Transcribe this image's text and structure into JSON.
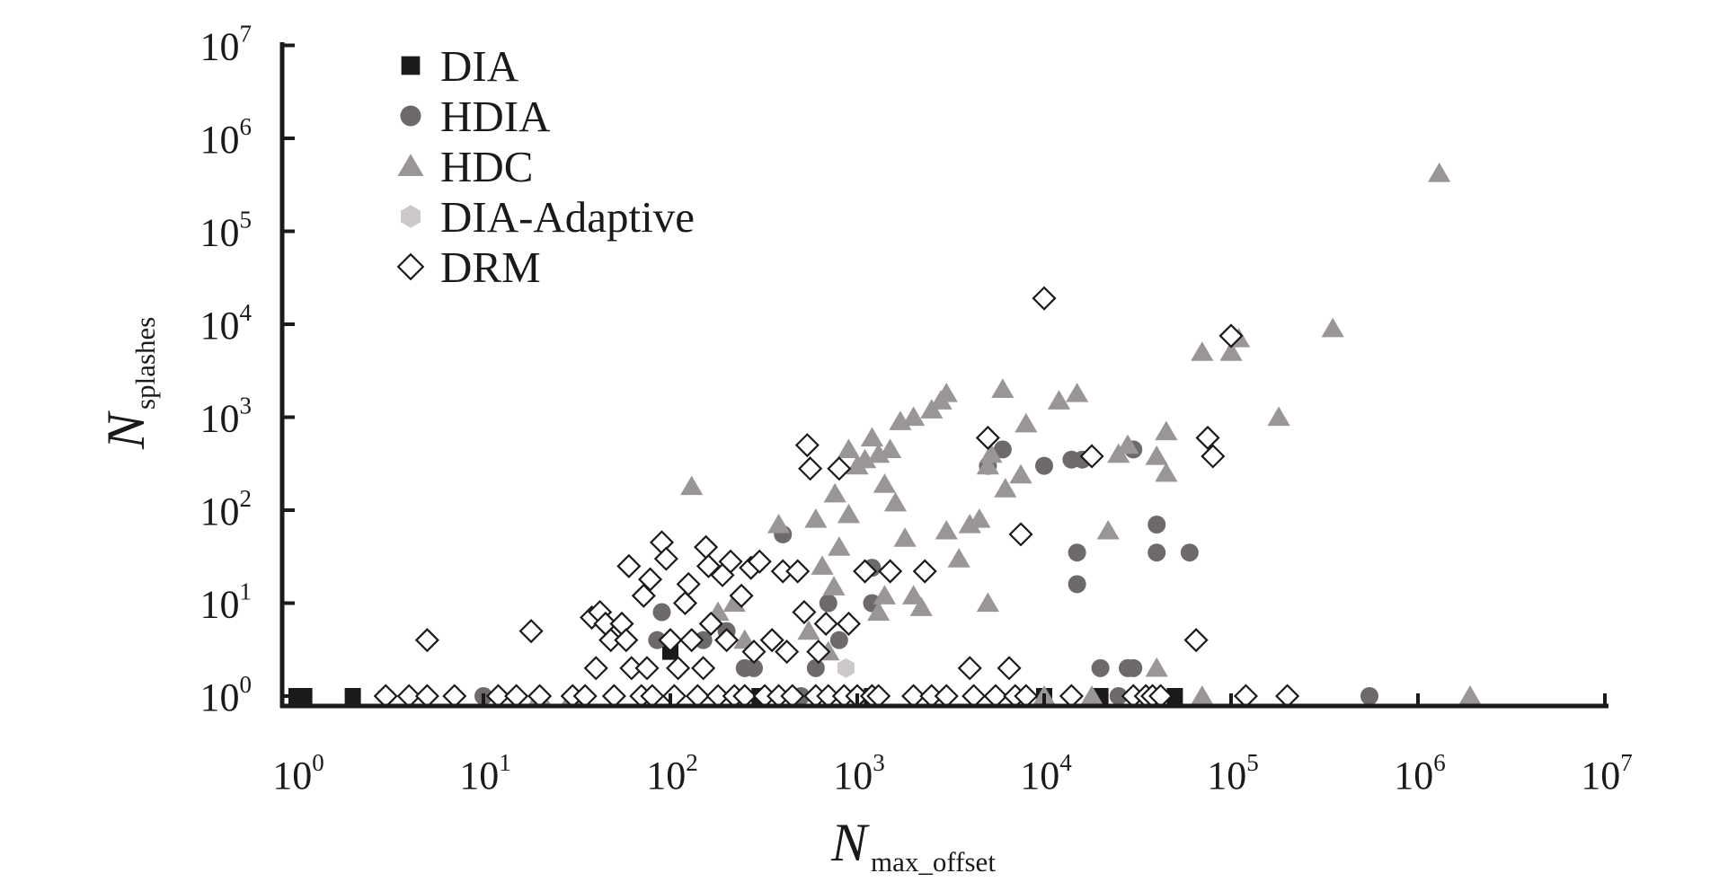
{
  "chart_data": {
    "type": "scatter",
    "x_scale": "log",
    "y_scale": "log",
    "xlim": [
      1,
      10000000
    ],
    "ylim": [
      1,
      10000000
    ],
    "x_ticks": [
      {
        "base": "10",
        "exp": "0"
      },
      {
        "base": "10",
        "exp": "1"
      },
      {
        "base": "10",
        "exp": "2"
      },
      {
        "base": "10",
        "exp": "3"
      },
      {
        "base": "10",
        "exp": "4"
      },
      {
        "base": "10",
        "exp": "5"
      },
      {
        "base": "10",
        "exp": "6"
      },
      {
        "base": "10",
        "exp": "7"
      }
    ],
    "y_ticks": [
      {
        "base": "10",
        "exp": "0"
      },
      {
        "base": "10",
        "exp": "1"
      },
      {
        "base": "10",
        "exp": "2"
      },
      {
        "base": "10",
        "exp": "3"
      },
      {
        "base": "10",
        "exp": "4"
      },
      {
        "base": "10",
        "exp": "5"
      },
      {
        "base": "10",
        "exp": "6"
      },
      {
        "base": "10",
        "exp": "7"
      }
    ],
    "xlabel": {
      "main": "N",
      "sub": "max_offset"
    },
    "ylabel": {
      "main": "N",
      "sub": "splashes"
    },
    "legend_position": "top-left",
    "series": [
      {
        "name": "DIA",
        "marker": "square",
        "color": "#1a1a1a",
        "points": [
          [
            1,
            1
          ],
          [
            1.1,
            1
          ],
          [
            2,
            1
          ],
          [
            100,
            3
          ],
          [
            300,
            1
          ],
          [
            1200,
            1
          ],
          [
            10000,
            1
          ],
          [
            20000,
            1
          ],
          [
            50000,
            1
          ]
        ]
      },
      {
        "name": "HDIA",
        "marker": "circle",
        "color": "#6e6a6b",
        "points": [
          [
            10,
            1
          ],
          [
            85,
            4
          ],
          [
            90,
            8
          ],
          [
            120,
            10
          ],
          [
            150,
            4
          ],
          [
            200,
            5
          ],
          [
            250,
            2
          ],
          [
            280,
            2
          ],
          [
            400,
            55
          ],
          [
            500,
            1
          ],
          [
            600,
            2
          ],
          [
            700,
            10
          ],
          [
            800,
            4
          ],
          [
            1000,
            1
          ],
          [
            1200,
            10
          ],
          [
            1200,
            24
          ],
          [
            5000,
            300
          ],
          [
            6000,
            450
          ],
          [
            10000,
            300
          ],
          [
            14000,
            350
          ],
          [
            15000,
            35
          ],
          [
            15000,
            16
          ],
          [
            16000,
            350
          ],
          [
            20000,
            2
          ],
          [
            25000,
            1
          ],
          [
            28000,
            2
          ],
          [
            30000,
            2
          ],
          [
            30000,
            450
          ],
          [
            40000,
            35
          ],
          [
            40000,
            70
          ],
          [
            60000,
            35
          ],
          [
            550000,
            1
          ]
        ]
      },
      {
        "name": "HDC",
        "marker": "triangle",
        "color": "#9a9596",
        "points": [
          [
            20,
            1
          ],
          [
            30,
            1
          ],
          [
            130,
            180
          ],
          [
            180,
            8
          ],
          [
            220,
            10
          ],
          [
            250,
            4
          ],
          [
            380,
            70
          ],
          [
            550,
            5
          ],
          [
            600,
            80
          ],
          [
            650,
            25
          ],
          [
            700,
            3
          ],
          [
            750,
            15
          ],
          [
            760,
            150
          ],
          [
            800,
            40
          ],
          [
            900,
            90
          ],
          [
            900,
            450
          ],
          [
            1000,
            300
          ],
          [
            1100,
            350
          ],
          [
            1200,
            600
          ],
          [
            1300,
            400
          ],
          [
            1300,
            8
          ],
          [
            1400,
            12
          ],
          [
            1400,
            190
          ],
          [
            1500,
            450
          ],
          [
            1600,
            120
          ],
          [
            1700,
            900
          ],
          [
            1800,
            50
          ],
          [
            2000,
            1000
          ],
          [
            2000,
            12
          ],
          [
            2200,
            9
          ],
          [
            2500,
            1200
          ],
          [
            2800,
            1500
          ],
          [
            3000,
            60
          ],
          [
            3000,
            1800
          ],
          [
            3500,
            30
          ],
          [
            4000,
            70
          ],
          [
            4500,
            80
          ],
          [
            5000,
            300
          ],
          [
            5000,
            10
          ],
          [
            5200,
            400
          ],
          [
            6000,
            2000
          ],
          [
            6200,
            170
          ],
          [
            7500,
            240
          ],
          [
            8000,
            850
          ],
          [
            10000,
            1
          ],
          [
            12000,
            1500
          ],
          [
            15000,
            1800
          ],
          [
            18000,
            1
          ],
          [
            22000,
            60
          ],
          [
            25000,
            400
          ],
          [
            28000,
            500
          ],
          [
            40000,
            2
          ],
          [
            40000,
            380
          ],
          [
            45000,
            700
          ],
          [
            45000,
            250
          ],
          [
            70000,
            5000
          ],
          [
            70000,
            1
          ],
          [
            100000,
            5000
          ],
          [
            110000,
            7000
          ],
          [
            180000,
            1000
          ],
          [
            350000,
            9000
          ],
          [
            1300000,
            420000
          ],
          [
            1900000,
            1
          ]
        ]
      },
      {
        "name": "DIA-Adaptive",
        "marker": "hexagon",
        "color": "#cdc9c9",
        "points": [
          [
            3,
            1
          ],
          [
            870,
            2
          ]
        ]
      },
      {
        "name": "DRM",
        "marker": "diamond",
        "color": "#ffffff",
        "points": [
          [
            3,
            1
          ],
          [
            4,
            1
          ],
          [
            5,
            1
          ],
          [
            5,
            4
          ],
          [
            7,
            1
          ],
          [
            12,
            1
          ],
          [
            15,
            1
          ],
          [
            18,
            5
          ],
          [
            20,
            1
          ],
          [
            30,
            1
          ],
          [
            35,
            1
          ],
          [
            38,
            7
          ],
          [
            40,
            2
          ],
          [
            42,
            8
          ],
          [
            45,
            6
          ],
          [
            48,
            4
          ],
          [
            50,
            1
          ],
          [
            55,
            6
          ],
          [
            58,
            4
          ],
          [
            60,
            25
          ],
          [
            62,
            2
          ],
          [
            70,
            1
          ],
          [
            72,
            12
          ],
          [
            75,
            2
          ],
          [
            78,
            18
          ],
          [
            80,
            1
          ],
          [
            90,
            45
          ],
          [
            95,
            30
          ],
          [
            100,
            4
          ],
          [
            105,
            1
          ],
          [
            110,
            2
          ],
          [
            120,
            10
          ],
          [
            125,
            16
          ],
          [
            130,
            4
          ],
          [
            140,
            1
          ],
          [
            150,
            2
          ],
          [
            155,
            40
          ],
          [
            160,
            25
          ],
          [
            165,
            6
          ],
          [
            180,
            1
          ],
          [
            190,
            20
          ],
          [
            200,
            4
          ],
          [
            210,
            28
          ],
          [
            220,
            1
          ],
          [
            240,
            12
          ],
          [
            250,
            1
          ],
          [
            270,
            24
          ],
          [
            280,
            3
          ],
          [
            300,
            28
          ],
          [
            320,
            1
          ],
          [
            350,
            4
          ],
          [
            380,
            1
          ],
          [
            400,
            22
          ],
          [
            420,
            3
          ],
          [
            450,
            1
          ],
          [
            480,
            22
          ],
          [
            520,
            8
          ],
          [
            540,
            500
          ],
          [
            560,
            280
          ],
          [
            600,
            1
          ],
          [
            620,
            3
          ],
          [
            680,
            6
          ],
          [
            700,
            1
          ],
          [
            800,
            280
          ],
          [
            850,
            1
          ],
          [
            900,
            6
          ],
          [
            1000,
            1
          ],
          [
            1100,
            22
          ],
          [
            1200,
            1
          ],
          [
            1300,
            1
          ],
          [
            1500,
            22
          ],
          [
            2000,
            1
          ],
          [
            2300,
            22
          ],
          [
            2500,
            1
          ],
          [
            3000,
            1
          ],
          [
            4000,
            2
          ],
          [
            4200,
            1
          ],
          [
            5000,
            600
          ],
          [
            5500,
            1
          ],
          [
            6500,
            2
          ],
          [
            7000,
            1
          ],
          [
            7500,
            55
          ],
          [
            8000,
            1
          ],
          [
            10000,
            19000
          ],
          [
            14000,
            1
          ],
          [
            18000,
            380
          ],
          [
            30000,
            1
          ],
          [
            35000,
            1
          ],
          [
            38000,
            1
          ],
          [
            42000,
            1
          ],
          [
            65000,
            4
          ],
          [
            75000,
            600
          ],
          [
            80000,
            380
          ],
          [
            100000,
            7500
          ],
          [
            120000,
            1
          ],
          [
            200000,
            1
          ]
        ]
      }
    ]
  }
}
